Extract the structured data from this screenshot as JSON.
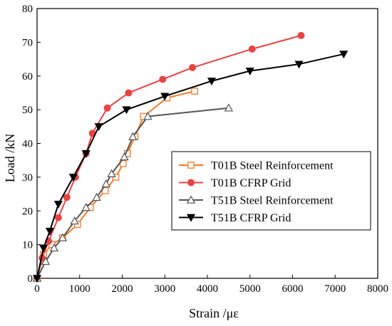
{
  "chart_data": {
    "type": "line",
    "title": "",
    "xlabel": "Strain  /με",
    "ylabel": "Load /kN",
    "xlim": [
      0,
      8000
    ],
    "ylim": [
      0,
      80
    ],
    "xticks": [
      "0",
      "1000",
      "2000",
      "3000",
      "4000",
      "5000",
      "6000",
      "7000",
      "8000"
    ],
    "yticks": [
      "0",
      "10",
      "20",
      "30",
      "40",
      "50",
      "60",
      "70",
      "80"
    ],
    "grid": false,
    "legend_position": "center-right",
    "series": [
      {
        "name": "T01B Steel Reinforcement",
        "color": "#f07a2a",
        "marker": "open-square",
        "x": [
          0,
          150,
          350,
          600,
          950,
          1250,
          1600,
          1850,
          2020,
          2120,
          2300,
          2500,
          3050,
          3700
        ],
        "y": [
          0,
          7,
          10,
          12,
          16,
          21,
          26,
          30,
          34,
          37,
          42,
          48,
          53.5,
          55.5
        ]
      },
      {
        "name": "T01B CFRP Grid",
        "color": "#e84242",
        "marker": "filled-circle",
        "x": [
          0,
          120,
          270,
          500,
          700,
          900,
          1150,
          1300,
          1650,
          2150,
          2950,
          3650,
          5050,
          6200
        ],
        "y": [
          0,
          6,
          11,
          18,
          24,
          30,
          37,
          43,
          50.5,
          55,
          59,
          62.5,
          68,
          72
        ]
      },
      {
        "name": "T51B Steel Reinforcement",
        "color": "#555555",
        "marker": "open-triangle-up",
        "x": [
          0,
          200,
          400,
          600,
          880,
          1150,
          1400,
          1620,
          1750,
          2050,
          2250,
          2600,
          4500
        ],
        "y": [
          0,
          5,
          9,
          12,
          17,
          21,
          24,
          28,
          31,
          36,
          42,
          48,
          50.5
        ]
      },
      {
        "name": "T51B CFRP Grid",
        "color": "#000000",
        "marker": "filled-triangle-down",
        "x": [
          0,
          150,
          300,
          500,
          850,
          1150,
          1450,
          2100,
          3000,
          4100,
          5000,
          6150,
          7200
        ],
        "y": [
          0,
          9,
          14,
          22,
          30,
          37,
          45,
          50,
          54,
          58.5,
          61.5,
          63.5,
          66.5
        ]
      }
    ]
  }
}
